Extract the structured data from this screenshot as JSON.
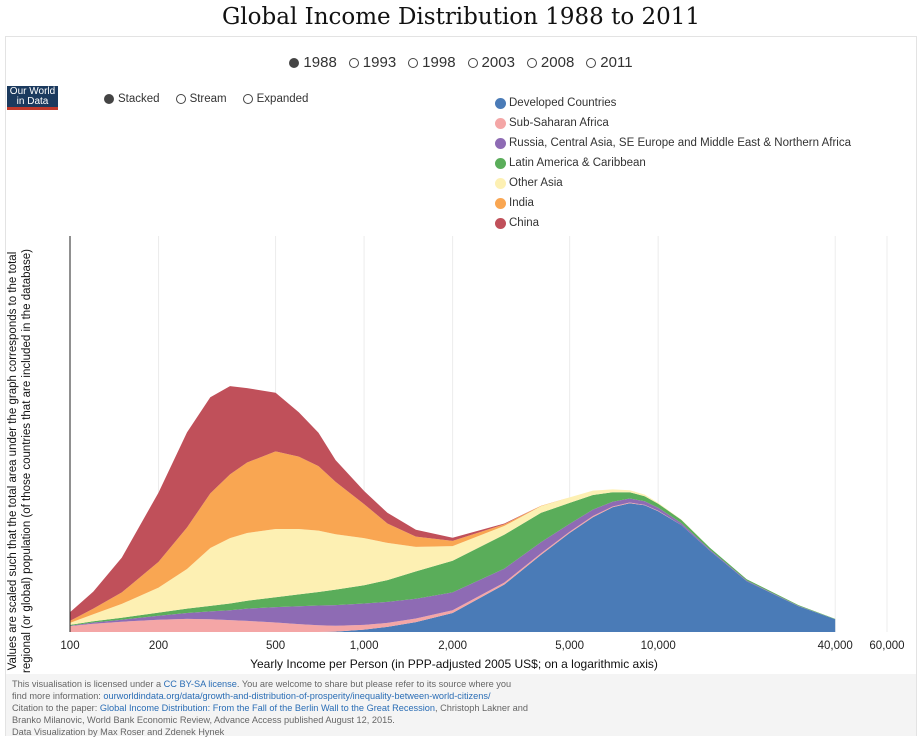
{
  "title": "Global Income Distribution 1988 to 2011",
  "years": [
    {
      "label": "1988",
      "selected": true
    },
    {
      "label": "1993",
      "selected": false
    },
    {
      "label": "1998",
      "selected": false
    },
    {
      "label": "2003",
      "selected": false
    },
    {
      "label": "2008",
      "selected": false
    },
    {
      "label": "2011",
      "selected": false
    }
  ],
  "modes": [
    {
      "label": "Stacked",
      "selected": true
    },
    {
      "label": "Stream",
      "selected": false
    },
    {
      "label": "Expanded",
      "selected": false
    }
  ],
  "logo": {
    "line1": "Our World",
    "line2": "in Data"
  },
  "footer": {
    "license_pre": "This visualisation is licensed under a ",
    "license_link": "CC BY-SA license",
    "license_post": ". You are welcome to share but please refer to its source where you",
    "more_pre": "find more information:  ",
    "more_link": "ourworldindata.org/data/growth-and-distribution-of-prosperity/inequality-between-world-citizens/",
    "citation_pre": "Citation to the paper: ",
    "citation_link": "Global Income Distribution: From the Fall of the Berlin Wall to the Great Recession",
    "citation_post": ", Christoph Lakner and",
    "citation_line2": "Branko Milanovic, World Bank Economic Review, Advance Access published August 12, 2015.",
    "credits": "Data Visualization by Max Roser and Zdenek Hynek"
  },
  "chart_data": {
    "type": "area",
    "stacked": true,
    "xscale": "log",
    "xlabel": "Yearly Income per Person (in PPP-adjusted 2005 US$; on a logarithmic axis)",
    "ylabel": "Values are scaled such that the total area under the graph corresponds to the total regional (or global) population (of those countries that are included in the database)",
    "xlim": [
      100,
      60000
    ],
    "ylim": [
      0,
      100
    ],
    "xticks": [
      {
        "value": 100,
        "label": "100"
      },
      {
        "value": 200,
        "label": "200"
      },
      {
        "value": 500,
        "label": "500"
      },
      {
        "value": 1000,
        "label": "1,000"
      },
      {
        "value": 2000,
        "label": "2,000"
      },
      {
        "value": 5000,
        "label": "5,000"
      },
      {
        "value": 10000,
        "label": "10,000"
      },
      {
        "value": 40000,
        "label": "40,000"
      },
      {
        "value": 60000,
        "label": "60,000"
      }
    ],
    "grid": {
      "x": true,
      "y": false
    },
    "legend_position": "top-right",
    "x": [
      100,
      120,
      150,
      200,
      250,
      300,
      350,
      400,
      500,
      600,
      700,
      800,
      1000,
      1200,
      1500,
      2000,
      3000,
      4000,
      5000,
      6000,
      7000,
      8000,
      9000,
      10000,
      12000,
      15000,
      20000,
      30000,
      40000
    ],
    "series": [
      {
        "name": "Developed Countries",
        "color": "#4a7bb7",
        "values": [
          0,
          0,
          0,
          0,
          0,
          0,
          0,
          0,
          0,
          0,
          0,
          0.1,
          0.6,
          1.3,
          2.5,
          4.8,
          12,
          19.5,
          25,
          29,
          31.5,
          32.5,
          32,
          30.5,
          27,
          20.5,
          12.8,
          6.5,
          3.2
        ]
      },
      {
        "name": "Sub-Saharan Africa",
        "color": "#f4a6a6",
        "values": [
          1.5,
          2.1,
          2.6,
          3.1,
          3.3,
          3.2,
          3.0,
          2.8,
          2.4,
          2.0,
          1.7,
          1.5,
          1.2,
          1.0,
          0.9,
          0.7,
          0.5,
          0.4,
          0.3,
          0.3,
          0.2,
          0.2,
          0.1,
          0.1,
          0,
          0,
          0,
          0,
          0
        ]
      },
      {
        "name": "Russia, Central Asia, SE Europe and Middle East & Northern Africa",
        "color": "#8e6bb4",
        "values": [
          0.1,
          0.3,
          0.5,
          1.0,
          1.5,
          2.0,
          2.5,
          3.1,
          3.9,
          4.5,
          5.0,
          5.2,
          5.4,
          5.3,
          5.0,
          4.5,
          3.5,
          2.8,
          2.0,
          1.6,
          1.2,
          1.0,
          0.9,
          0.8,
          0.5,
          0.3,
          0.2,
          0.1,
          0
        ]
      },
      {
        "name": "Latin America & Caribbean",
        "color": "#5aad5a",
        "values": [
          0.2,
          0.3,
          0.5,
          0.8,
          1.1,
          1.4,
          1.7,
          2.0,
          2.5,
          3.0,
          3.4,
          3.9,
          4.6,
          5.5,
          6.9,
          8.0,
          8.6,
          7.4,
          5.3,
          3.7,
          2.4,
          1.6,
          1.3,
          1.0,
          0.8,
          0.5,
          0.3,
          0.2,
          0.1
        ]
      },
      {
        "name": "Other Asia",
        "color": "#fdf0b3",
        "values": [
          0.5,
          1.8,
          3.5,
          6.3,
          10,
          14.6,
          16.5,
          17.1,
          17.2,
          16.5,
          15.5,
          14,
          11.9,
          9.4,
          6.2,
          3.7,
          2.2,
          1.7,
          1.4,
          1.1,
          0.7,
          0.5,
          0.4,
          0.2,
          0.1,
          0,
          0,
          0,
          0
        ]
      },
      {
        "name": "India",
        "color": "#f9a652",
        "values": [
          0.5,
          1.4,
          2.9,
          6.5,
          10.5,
          13.8,
          16.1,
          17.8,
          19.6,
          18.3,
          16.3,
          13.2,
          8.6,
          4.9,
          2.6,
          1.3,
          0.4,
          0.1,
          0,
          0,
          0,
          0,
          0,
          0,
          0,
          0,
          0,
          0,
          0
        ]
      },
      {
        "name": "China",
        "color": "#c0505a",
        "values": [
          2.2,
          4.3,
          8.8,
          17.5,
          24.0,
          24.3,
          22.3,
          18.8,
          14.8,
          11.2,
          8.4,
          5.5,
          3.3,
          2.7,
          1.7,
          0.8,
          0.2,
          0,
          0,
          0,
          0,
          0,
          0,
          0,
          0,
          0,
          0,
          0,
          0
        ]
      }
    ]
  }
}
